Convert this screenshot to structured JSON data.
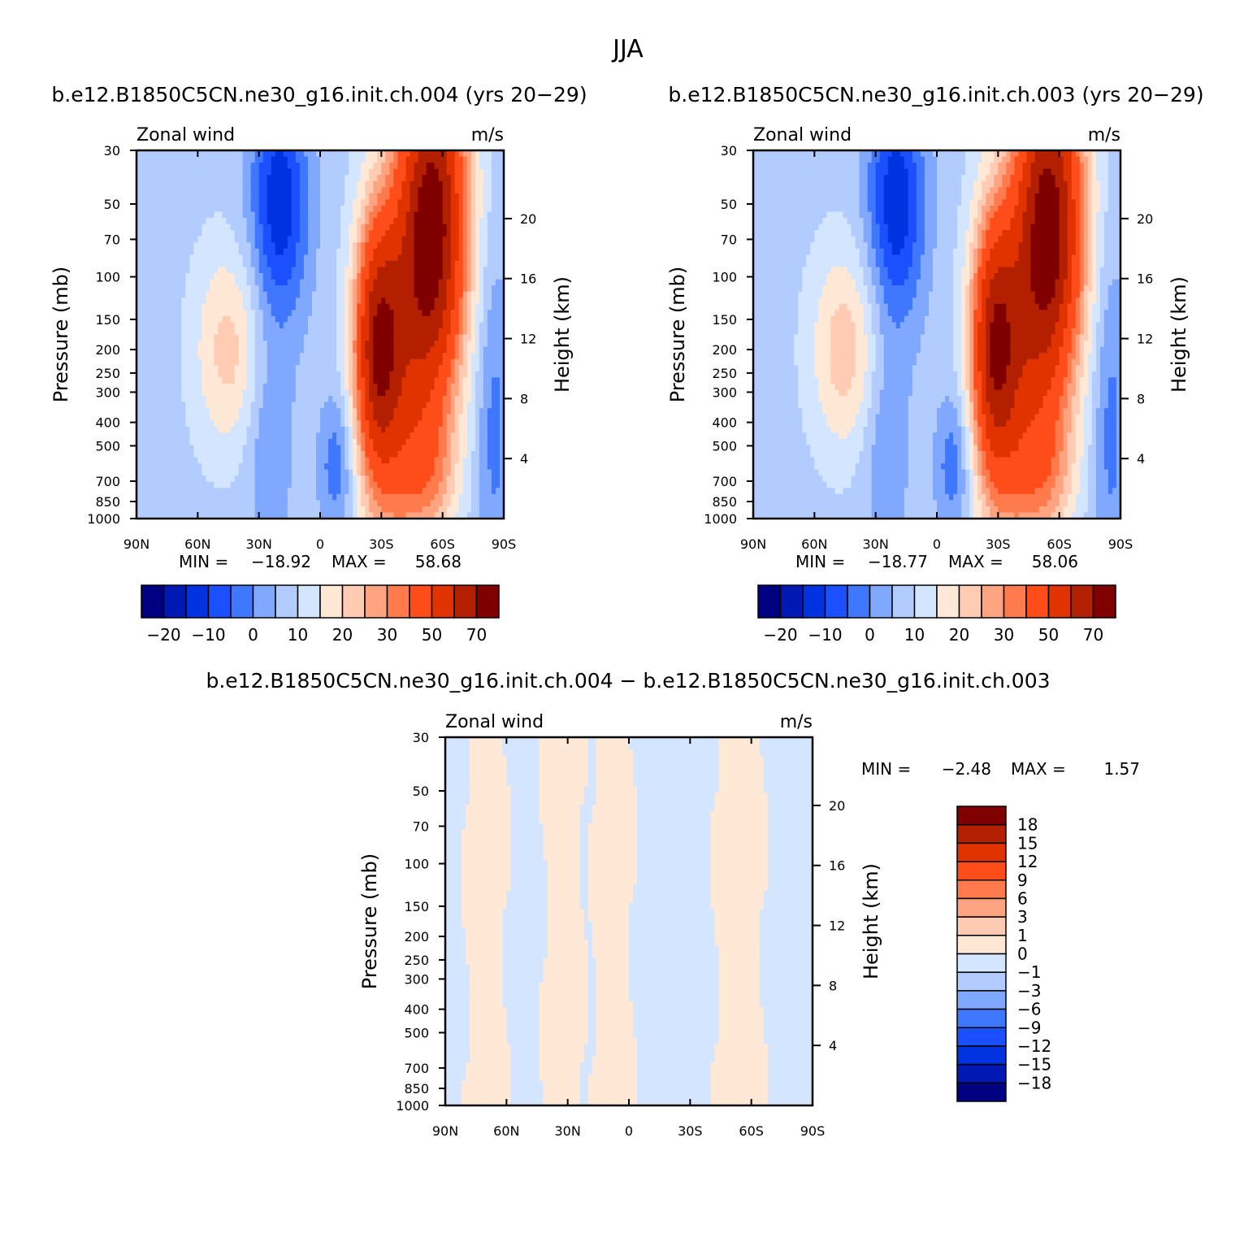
{
  "figure": {
    "title": "JJA",
    "diff_title": "b.e12.B1850C5CN.ne30_g16.init.ch.004 − b.e12.B1850C5CN.ne30_g16.init.ch.003",
    "min_label": "MIN =",
    "max_label": "MAX ="
  },
  "colors": {
    "cmap": [
      "#000080",
      "#0019b5",
      "#0033e0",
      "#1a50ff",
      "#4077ff",
      "#80a8ff",
      "#b3ccff",
      "#d4e6ff",
      "#ffe8d6",
      "#ffcbb3",
      "#ffa380",
      "#ff7a4d",
      "#ff4d1a",
      "#e03300",
      "#b32000",
      "#800000"
    ]
  },
  "chart_data": [
    {
      "type": "heatmap",
      "panel_title": "b.e12.B1850C5CN.ne30_g16.init.ch.004 (yrs 20−29)",
      "left_label": "Zonal wind",
      "right_label": "m/s",
      "ylabel": "Pressure (mb)",
      "ylabel_right": "Height (km)",
      "x_ticks": [
        "90N",
        "60N",
        "30N",
        "0",
        "30S",
        "60S",
        "90S"
      ],
      "y_ticks": [
        "30",
        "50",
        "70",
        "100",
        "150",
        "200",
        "250",
        "300",
        "400",
        "500",
        "700",
        "850",
        "1000"
      ],
      "y_ticks_right": [
        "20",
        "16",
        "12",
        "8",
        "4"
      ],
      "xlim": [
        90,
        -90
      ],
      "ylim": [
        1000,
        30
      ],
      "min": "−18.92",
      "max": "58.68",
      "colorbar_labels": [
        "−20",
        "−10",
        "0",
        "10",
        "20",
        "30",
        "50",
        "70"
      ],
      "features": [
        {
          "lat": -55,
          "p": 60,
          "value": 62,
          "slat": 12,
          "slogp": 0.5
        },
        {
          "lat": -28,
          "p": 190,
          "value": 46,
          "slat": 8,
          "slogp": 0.38
        },
        {
          "lat": -40,
          "p": 350,
          "value": 22,
          "slat": 13,
          "slogp": 0.55
        },
        {
          "lat": -55,
          "p": 650,
          "value": 10,
          "slat": 10,
          "slogp": 0.18
        },
        {
          "lat": 20,
          "p": 50,
          "value": -22,
          "slat": 10,
          "slogp": 0.35
        },
        {
          "lat": 25,
          "p": 500,
          "value": -8,
          "slat": 8,
          "slogp": 0.3
        },
        {
          "lat": -8,
          "p": 600,
          "value": -12,
          "slat": 6,
          "slogp": 0.2
        },
        {
          "lat": 45,
          "p": 200,
          "value": 14,
          "slat": 12,
          "slogp": 0.3
        },
        {
          "lat": -85,
          "p": 400,
          "value": -10,
          "slat": 6,
          "slogp": 0.5
        }
      ]
    },
    {
      "type": "heatmap",
      "panel_title": "b.e12.B1850C5CN.ne30_g16.init.ch.003 (yrs 20−29)",
      "left_label": "Zonal wind",
      "right_label": "m/s",
      "ylabel": "Pressure (mb)",
      "ylabel_right": "Height (km)",
      "x_ticks": [
        "90N",
        "60N",
        "30N",
        "0",
        "30S",
        "60S",
        "90S"
      ],
      "y_ticks": [
        "30",
        "50",
        "70",
        "100",
        "150",
        "200",
        "250",
        "300",
        "400",
        "500",
        "700",
        "850",
        "1000"
      ],
      "y_ticks_right": [
        "20",
        "16",
        "12",
        "8",
        "4"
      ],
      "xlim": [
        90,
        -90
      ],
      "ylim": [
        1000,
        30
      ],
      "min": "−18.77",
      "max": "58.06",
      "colorbar_labels": [
        "−20",
        "−10",
        "0",
        "10",
        "20",
        "30",
        "50",
        "70"
      ],
      "features": [
        {
          "lat": -55,
          "p": 60,
          "value": 61,
          "slat": 12,
          "slogp": 0.5
        },
        {
          "lat": -28,
          "p": 190,
          "value": 45,
          "slat": 8,
          "slogp": 0.38
        },
        {
          "lat": -40,
          "p": 350,
          "value": 22,
          "slat": 13,
          "slogp": 0.55
        },
        {
          "lat": -55,
          "p": 650,
          "value": 10,
          "slat": 10,
          "slogp": 0.18
        },
        {
          "lat": 20,
          "p": 50,
          "value": -22,
          "slat": 10,
          "slogp": 0.35
        },
        {
          "lat": 25,
          "p": 500,
          "value": -8,
          "slat": 8,
          "slogp": 0.3
        },
        {
          "lat": -8,
          "p": 600,
          "value": -12,
          "slat": 6,
          "slogp": 0.2
        },
        {
          "lat": 45,
          "p": 200,
          "value": 15,
          "slat": 12,
          "slogp": 0.3
        },
        {
          "lat": -85,
          "p": 400,
          "value": -10,
          "slat": 6,
          "slogp": 0.5
        }
      ]
    },
    {
      "type": "heatmap",
      "left_label": "Zonal wind",
      "right_label": "m/s",
      "ylabel": "Pressure (mb)",
      "ylabel_right": "Height (km)",
      "x_ticks": [
        "90N",
        "60N",
        "30N",
        "0",
        "30S",
        "60S",
        "90S"
      ],
      "y_ticks": [
        "30",
        "50",
        "70",
        "100",
        "150",
        "200",
        "250",
        "300",
        "400",
        "500",
        "700",
        "850",
        "1000"
      ],
      "y_ticks_right": [
        "20",
        "16",
        "12",
        "8",
        "4"
      ],
      "xlim": [
        90,
        -90
      ],
      "ylim": [
        1000,
        30
      ],
      "min": "−2.48",
      "max": "1.57",
      "colorbar_labels": [
        "18",
        "15",
        "12",
        "9",
        "6",
        "3",
        "1",
        "0",
        "−1",
        "−3",
        "−6",
        "−9",
        "−12",
        "−15",
        "−18"
      ],
      "bands": [
        {
          "lat_from": 80,
          "lat_to": 60,
          "value": 0.4
        },
        {
          "lat_from": 42,
          "lat_to": 22,
          "value": 0.4
        },
        {
          "lat_from": 18,
          "lat_to": -2,
          "value": 0.4
        },
        {
          "lat_from": -42,
          "lat_to": -66,
          "value": 0.4
        }
      ]
    }
  ]
}
